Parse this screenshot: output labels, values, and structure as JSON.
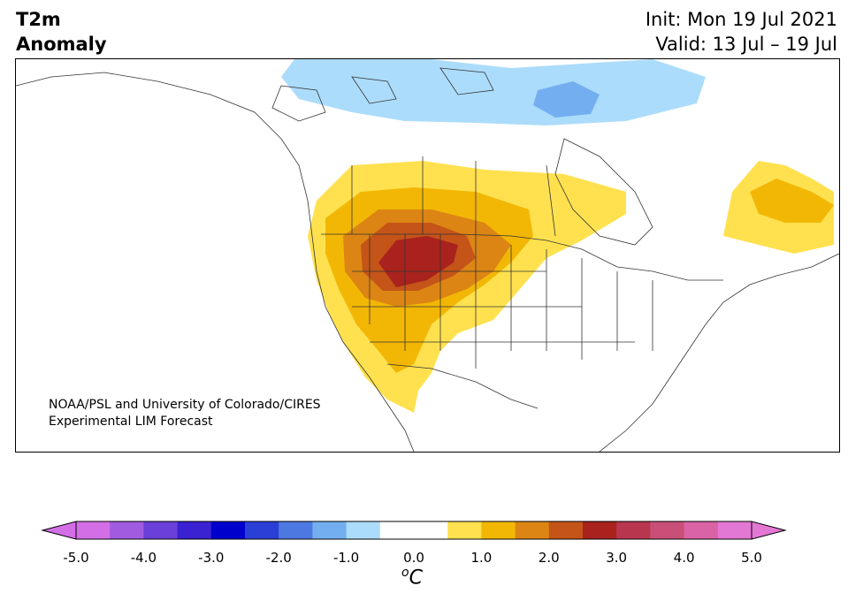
{
  "header": {
    "variable_line1": "T2m",
    "variable_line2": "Anomaly",
    "init_text": "Init: Mon 19 Jul 2021",
    "valid_text": "Valid: 13 Jul – 19 Jul"
  },
  "credit": {
    "line1": "NOAA/PSL and University of Colorado/CIRES",
    "line2": "Experimental LIM Forecast"
  },
  "colorbar": {
    "ticks": [
      "-5.0",
      "-4.0",
      "-3.0",
      "-2.0",
      "-1.0",
      "0.0",
      "1.0",
      "2.0",
      "3.0",
      "4.0",
      "5.0"
    ],
    "unit_symbol": "o",
    "unit_letter": "C",
    "colors": [
      "#d36ee6",
      "#a05be0",
      "#6b3fd9",
      "#3a21d1",
      "#0000cc",
      "#2a3fd6",
      "#4e78e1",
      "#73aff0",
      "#acdcfb",
      "#ffffff",
      "#ffffff",
      "#ffe14f",
      "#f2b705",
      "#dc8514",
      "#c45418",
      "#a9221d",
      "#b8374f",
      "#c94f78",
      "#d963a5",
      "#e377d4"
    ]
  },
  "map_colors": {
    "cool1": "#acdcfb",
    "cool2": "#73aff0",
    "warm1": "#ffe14f",
    "warm2": "#f2b705",
    "warm3": "#dc8514",
    "warm4": "#c45418",
    "warm5": "#a9221d"
  }
}
